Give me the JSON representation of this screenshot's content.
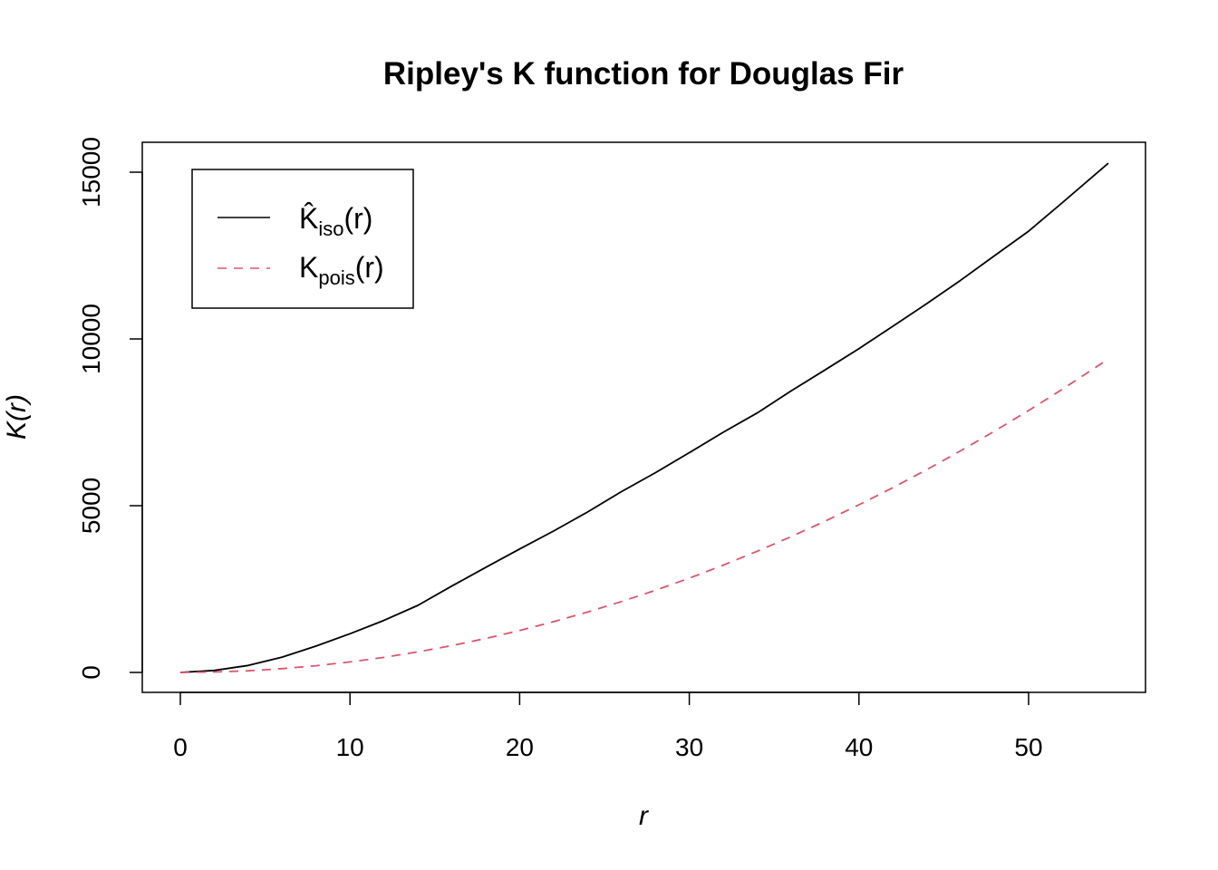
{
  "chart_data": {
    "type": "line",
    "title": "Ripley's K function for Douglas Fir",
    "xlabel": "r",
    "ylabel": "K(r)",
    "xlim": [
      0,
      54.7
    ],
    "ylim": [
      0,
      15300
    ],
    "x_ticks": [
      0,
      10,
      20,
      30,
      40,
      50
    ],
    "y_ticks": [
      0,
      5000,
      10000,
      15000
    ],
    "grid": false,
    "legend_position": "top-left",
    "series": [
      {
        "name": "K̂iso(r)",
        "name_main": "K̂",
        "name_sub": "iso",
        "name_tail": "(r)",
        "color": "#000000",
        "dash": "solid",
        "x": [
          0,
          2,
          4,
          6,
          8,
          10,
          12,
          14,
          16,
          18,
          20,
          22,
          24,
          26,
          28,
          30,
          32,
          34,
          36,
          38,
          40,
          42,
          44,
          46,
          48,
          50,
          52,
          54.7
        ],
        "y": [
          0,
          60,
          210,
          460,
          790,
          1160,
          1560,
          2010,
          2590,
          3150,
          3700,
          4240,
          4810,
          5420,
          5990,
          6590,
          7200,
          7780,
          8440,
          9070,
          9710,
          10380,
          11060,
          11760,
          12500,
          13230,
          14090,
          15270
        ]
      },
      {
        "name": "Kpois(r)",
        "name_main": "K",
        "name_sub": "pois",
        "name_tail": "(r)",
        "color": "#DF536B",
        "dash": "dashed",
        "x": [
          0,
          2,
          4,
          6,
          8,
          10,
          12,
          14,
          16,
          18,
          20,
          22,
          24,
          26,
          28,
          30,
          32,
          34,
          36,
          38,
          40,
          42,
          44,
          46,
          48,
          50,
          52,
          54.7
        ],
        "y": [
          0,
          13,
          50,
          113,
          201,
          314,
          452,
          616,
          804,
          1018,
          1257,
          1521,
          1810,
          2124,
          2463,
          2827,
          3217,
          3632,
          4072,
          4536,
          5027,
          5542,
          6082,
          6648,
          7238,
          7854,
          8495,
          9400
        ]
      }
    ]
  }
}
